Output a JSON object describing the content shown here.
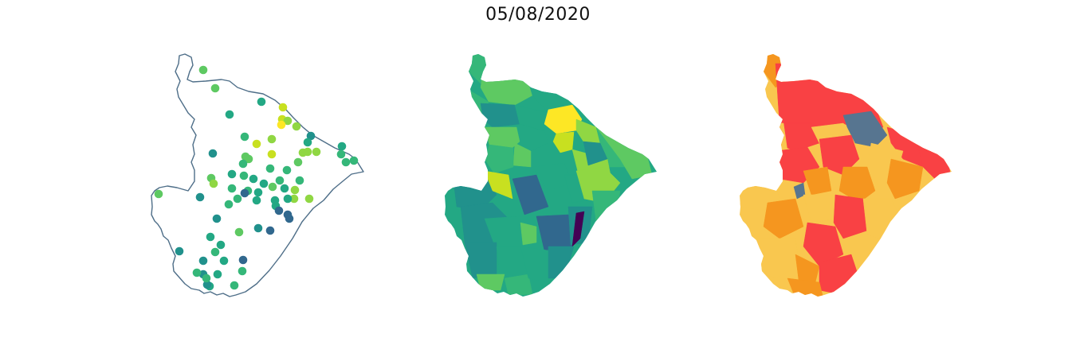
{
  "title": "05/08/2020",
  "colors": {
    "outline": "#4e6e88",
    "viridis": [
      "#440154",
      "#31688e",
      "#21918c",
      "#23a884",
      "#35b779",
      "#5ec962",
      "#90d743",
      "#c8e020",
      "#fde725"
    ],
    "categories": {
      "orange": "#f5961f",
      "red": "#f94144",
      "slate": "#577590",
      "gold": "#f9c74f"
    }
  },
  "maps": [
    {
      "name": "points",
      "style": "outline-with-circle-markers"
    },
    {
      "name": "choropleth",
      "colormap": "viridis"
    },
    {
      "name": "categories",
      "palette": [
        "orange",
        "red",
        "slate",
        "gold"
      ]
    }
  ]
}
